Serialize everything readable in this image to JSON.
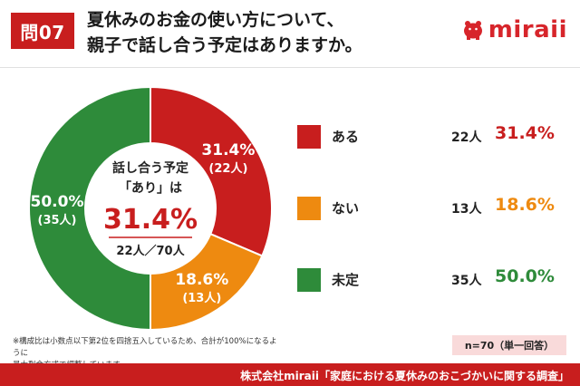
{
  "header": {
    "question_badge": "問07",
    "title_line1": "夏休みのお金の使い方について、",
    "title_line2": "親子で話し合う予定はありますか。",
    "brand": "miraii",
    "brand_color": "#d7252b",
    "brand_icon": "piggy-bank-icon"
  },
  "chart_data": {
    "type": "pie",
    "variant": "donut",
    "categories": [
      "ある",
      "ない",
      "未定"
    ],
    "values": [
      31.4,
      18.6,
      50.0
    ],
    "counts_label": [
      "(22人)",
      "(13人)",
      "(35人)"
    ],
    "value_labels": [
      "31.4%",
      "18.6%",
      "50.0%"
    ],
    "colors": [
      "#c81e1e",
      "#ee8a10",
      "#2e8b3a"
    ],
    "center": {
      "line1": "話し合う予定",
      "line2": "「あり」は",
      "value": "31.4%",
      "sub": "22人／70人"
    }
  },
  "legend": [
    {
      "label": "ある",
      "count": "22人",
      "pct": "31.4%",
      "color": "#c81e1e"
    },
    {
      "label": "ない",
      "count": "13人",
      "pct": "18.6%",
      "color": "#ee8a10"
    },
    {
      "label": "未定",
      "count": "35人",
      "pct": "50.0%",
      "color": "#2e8b3a"
    }
  ],
  "note_line1": "※構成比は小数点以下第2位を四捨五入しているため、合計が100%になるように",
  "note_line2": "最大剰余方式で調整しています。",
  "sample": "n=70（単一回答）",
  "footer": "株式会社miraii「家庭における夏休みのおこづかいに関する調査」"
}
